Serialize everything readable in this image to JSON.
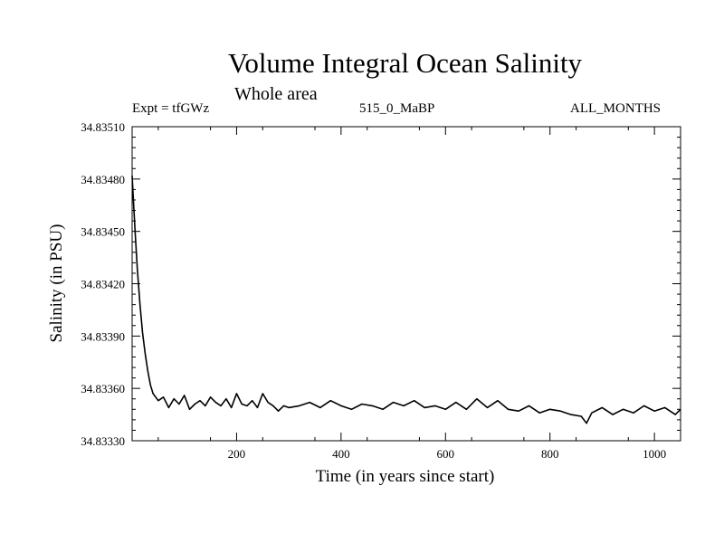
{
  "chart_data": {
    "type": "line",
    "title": "Volume Integral Ocean Salinity",
    "subtitle": "Whole area",
    "meta_left": "Expt = tfGWz",
    "meta_center": "515_0_MaBP",
    "meta_right": "ALL_MONTHS",
    "xlabel": "Time (in years since start)",
    "ylabel": "Salinity (in PSU)",
    "xlim": [
      0,
      1050
    ],
    "ylim": [
      34.8333,
      34.8351
    ],
    "xticks": [
      200,
      400,
      600,
      800,
      1000
    ],
    "xtick_labels": [
      "200",
      "400",
      "600",
      "800",
      "1000"
    ],
    "yticks": [
      34.8333,
      34.8336,
      34.8339,
      34.8342,
      34.8345,
      34.8348,
      34.8351
    ],
    "ytick_labels": [
      "34.83330",
      "34.83360",
      "34.83390",
      "34.83420",
      "34.83450",
      "34.83480",
      "34.83510"
    ],
    "series": [
      {
        "name": "Salinity",
        "x": [
          0,
          3,
          6,
          10,
          15,
          20,
          25,
          30,
          35,
          40,
          50,
          60,
          70,
          80,
          90,
          100,
          110,
          120,
          130,
          140,
          150,
          160,
          170,
          180,
          190,
          200,
          210,
          220,
          230,
          240,
          250,
          260,
          270,
          280,
          290,
          300,
          320,
          340,
          360,
          380,
          400,
          420,
          440,
          460,
          480,
          500,
          520,
          540,
          560,
          580,
          600,
          620,
          640,
          660,
          680,
          700,
          720,
          740,
          760,
          780,
          800,
          820,
          840,
          860,
          870,
          880,
          900,
          920,
          940,
          960,
          980,
          1000,
          1020,
          1040,
          1050
        ],
        "y": [
          34.83482,
          34.83465,
          34.83448,
          34.83428,
          34.83408,
          34.83392,
          34.8338,
          34.8337,
          34.83362,
          34.83357,
          34.83353,
          34.83355,
          34.83349,
          34.83354,
          34.83351,
          34.83356,
          34.83348,
          34.83351,
          34.83353,
          34.8335,
          34.83355,
          34.83352,
          34.8335,
          34.83354,
          34.83349,
          34.83357,
          34.83351,
          34.8335,
          34.83353,
          34.83349,
          34.83357,
          34.83352,
          34.8335,
          34.83347,
          34.8335,
          34.83349,
          34.8335,
          34.83352,
          34.83349,
          34.83353,
          34.8335,
          34.83348,
          34.83351,
          34.8335,
          34.83348,
          34.83352,
          34.8335,
          34.83353,
          34.83349,
          34.8335,
          34.83348,
          34.83352,
          34.83348,
          34.83354,
          34.83349,
          34.83353,
          34.83348,
          34.83347,
          34.8335,
          34.83346,
          34.83348,
          34.83347,
          34.83345,
          34.83344,
          34.8334,
          34.83346,
          34.83349,
          34.83345,
          34.83348,
          34.83346,
          34.8335,
          34.83347,
          34.83349,
          34.83345,
          34.83348
        ]
      }
    ]
  }
}
